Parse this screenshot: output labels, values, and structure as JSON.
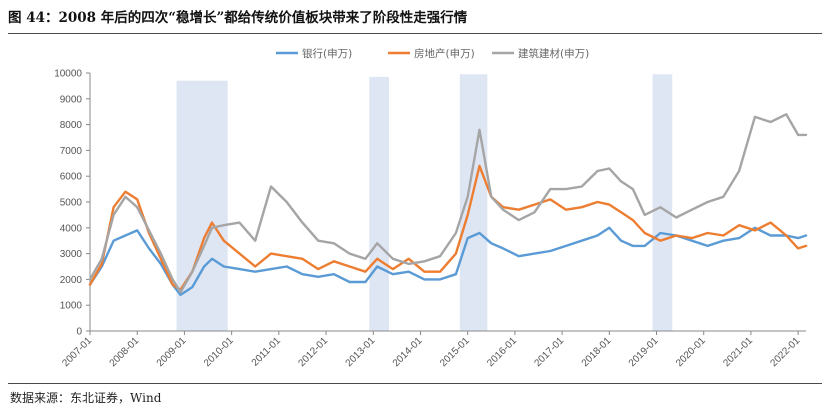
{
  "figure": {
    "title": "图 44：2008 年后的四次“稳增长”都给传统价值板块带来了阶段性走强行情",
    "source": "数据来源：东北证券，Wind"
  },
  "chart_data": {
    "type": "line",
    "ylim": [
      0,
      10000
    ],
    "yticks": [
      "0",
      "1000",
      "2000",
      "3000",
      "4000",
      "5000",
      "6000",
      "7000",
      "8000",
      "9000",
      "10000"
    ],
    "xlim": [
      "2007-01",
      "2022-03"
    ],
    "xticks": [
      "2007-01",
      "2008-01",
      "2009-01",
      "2010-01",
      "2011-01",
      "2012-01",
      "2013-01",
      "2014-01",
      "2015-01",
      "2016-01",
      "2017-01",
      "2018-01",
      "2019-01",
      "2020-01",
      "2021-01",
      "2022-01"
    ],
    "legend_position": "top-center",
    "grid": false,
    "shaded_periods": [
      {
        "start": "2008-11",
        "end": "2009-12",
        "top": 9700
      },
      {
        "start": "2012-12",
        "end": "2013-05",
        "top": 9850
      },
      {
        "start": "2014-11",
        "end": "2015-06",
        "top": 9950
      },
      {
        "start": "2018-12",
        "end": "2019-05",
        "top": 9950
      }
    ],
    "series": [
      {
        "name": "银行(申万)",
        "color": "#5b9bd5",
        "x": [
          "2007-01",
          "2007-04",
          "2007-07",
          "2007-10",
          "2008-01",
          "2008-04",
          "2008-07",
          "2008-10",
          "2008-12",
          "2009-03",
          "2009-06",
          "2009-08",
          "2009-11",
          "2010-03",
          "2010-07",
          "2010-11",
          "2011-03",
          "2011-07",
          "2011-11",
          "2012-03",
          "2012-07",
          "2012-11",
          "2013-02",
          "2013-06",
          "2013-10",
          "2014-02",
          "2014-06",
          "2014-10",
          "2015-01",
          "2015-04",
          "2015-07",
          "2015-10",
          "2016-02",
          "2016-06",
          "2016-10",
          "2017-02",
          "2017-06",
          "2017-10",
          "2018-01",
          "2018-04",
          "2018-07",
          "2018-10",
          "2019-02",
          "2019-06",
          "2019-10",
          "2020-02",
          "2020-06",
          "2020-10",
          "2021-02",
          "2021-06",
          "2021-10",
          "2022-01",
          "2022-03"
        ],
        "values": [
          1800,
          2500,
          3500,
          3700,
          3900,
          3200,
          2600,
          1800,
          1400,
          1700,
          2500,
          2800,
          2500,
          2400,
          2300,
          2400,
          2500,
          2200,
          2100,
          2200,
          1900,
          1900,
          2500,
          2200,
          2300,
          2000,
          2000,
          2200,
          3600,
          3800,
          3400,
          3200,
          2900,
          3000,
          3100,
          3300,
          3500,
          3700,
          4000,
          3500,
          3300,
          3300,
          3800,
          3700,
          3500,
          3300,
          3500,
          3600,
          4000,
          3700,
          3700,
          3600,
          3700
        ]
      },
      {
        "name": "房地产(申万)",
        "color": "#ed7d31",
        "x": [
          "2007-01",
          "2007-04",
          "2007-07",
          "2007-10",
          "2008-01",
          "2008-04",
          "2008-07",
          "2008-10",
          "2008-12",
          "2009-03",
          "2009-06",
          "2009-08",
          "2009-11",
          "2010-03",
          "2010-07",
          "2010-11",
          "2011-03",
          "2011-07",
          "2011-11",
          "2012-03",
          "2012-07",
          "2012-11",
          "2013-02",
          "2013-06",
          "2013-10",
          "2014-02",
          "2014-06",
          "2014-10",
          "2015-01",
          "2015-04",
          "2015-07",
          "2015-10",
          "2016-02",
          "2016-06",
          "2016-10",
          "2017-02",
          "2017-06",
          "2017-10",
          "2018-01",
          "2018-04",
          "2018-07",
          "2018-10",
          "2019-02",
          "2019-06",
          "2019-10",
          "2020-02",
          "2020-06",
          "2020-10",
          "2021-02",
          "2021-06",
          "2021-10",
          "2022-01",
          "2022-03"
        ],
        "values": [
          1800,
          2600,
          4800,
          5400,
          5100,
          3800,
          2800,
          1800,
          1600,
          2300,
          3600,
          4200,
          3500,
          3000,
          2500,
          3000,
          2900,
          2800,
          2400,
          2700,
          2500,
          2300,
          2800,
          2400,
          2800,
          2300,
          2300,
          3000,
          4500,
          6400,
          5200,
          4800,
          4700,
          4900,
          5100,
          4700,
          4800,
          5000,
          4900,
          4600,
          4300,
          3800,
          3500,
          3700,
          3600,
          3800,
          3700,
          4100,
          3900,
          4200,
          3700,
          3200,
          3300
        ]
      },
      {
        "name": "建筑建材(申万)",
        "color": "#a5a5a5",
        "x": [
          "2007-01",
          "2007-04",
          "2007-07",
          "2007-10",
          "2008-01",
          "2008-04",
          "2008-07",
          "2008-10",
          "2008-12",
          "2009-03",
          "2009-06",
          "2009-08",
          "2009-11",
          "2010-03",
          "2010-07",
          "2010-11",
          "2011-03",
          "2011-07",
          "2011-11",
          "2012-03",
          "2012-07",
          "2012-11",
          "2013-02",
          "2013-06",
          "2013-10",
          "2014-02",
          "2014-06",
          "2014-10",
          "2015-01",
          "2015-04",
          "2015-07",
          "2015-10",
          "2016-02",
          "2016-06",
          "2016-10",
          "2017-02",
          "2017-06",
          "2017-10",
          "2018-01",
          "2018-04",
          "2018-07",
          "2018-10",
          "2019-02",
          "2019-06",
          "2019-10",
          "2020-02",
          "2020-06",
          "2020-10",
          "2021-02",
          "2021-06",
          "2021-10",
          "2022-01",
          "2022-03"
        ],
        "values": [
          2000,
          2800,
          4500,
          5200,
          4800,
          3900,
          3000,
          2000,
          1500,
          2300,
          3300,
          4000,
          4100,
          4200,
          3500,
          5600,
          5000,
          4200,
          3500,
          3400,
          3000,
          2800,
          3400,
          2800,
          2600,
          2700,
          2900,
          3800,
          5200,
          7800,
          5200,
          4700,
          4300,
          4600,
          5500,
          5500,
          5600,
          6200,
          6300,
          5800,
          5500,
          4500,
          4800,
          4400,
          4700,
          5000,
          5200,
          6200,
          8300,
          8100,
          8400,
          7600,
          7600
        ]
      }
    ]
  }
}
